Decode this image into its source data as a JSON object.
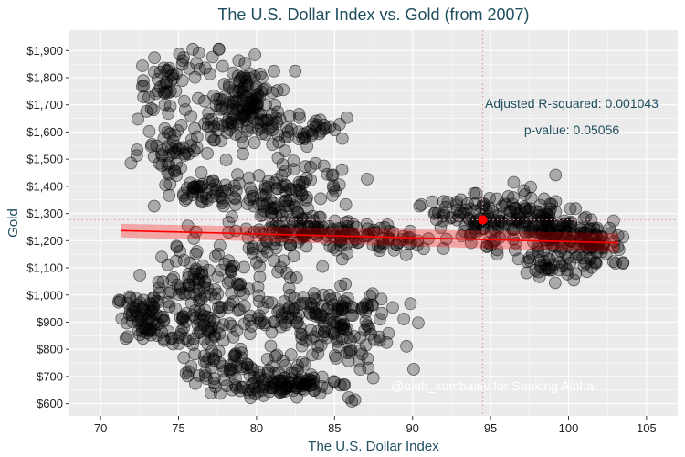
{
  "chart_data": {
    "type": "scatter",
    "title": "The U.S. Dollar Index vs. Gold (from 2007)",
    "xlabel": "The U.S. Dollar Index",
    "ylabel": "Gold",
    "xlim": [
      68,
      107
    ],
    "ylim": [
      555,
      1975
    ],
    "x_ticks": [
      70,
      75,
      80,
      85,
      90,
      95,
      100,
      105
    ],
    "y_ticks": [
      600,
      700,
      800,
      900,
      1000,
      1100,
      1200,
      1300,
      1400,
      1500,
      1600,
      1700,
      1800,
      1900
    ],
    "y_tick_labels": [
      "$600",
      "$700",
      "$800",
      "$900",
      "$1,000",
      "$1,100",
      "$1,200",
      "$1,300",
      "$1,400",
      "$1,500",
      "$1,600",
      "$1,700",
      "$1,800",
      "$1,900"
    ],
    "grid": true,
    "clusters": [
      {
        "cx": 73,
        "cy": 915,
        "sx": 1.0,
        "sy": 45,
        "n": 80
      },
      {
        "cx": 77,
        "cy": 880,
        "sx": 1.4,
        "sy": 80,
        "n": 90
      },
      {
        "cx": 79.5,
        "cy": 720,
        "sx": 2.0,
        "sy": 50,
        "n": 80
      },
      {
        "cx": 82,
        "cy": 665,
        "sx": 1.5,
        "sy": 15,
        "n": 70
      },
      {
        "cx": 84,
        "cy": 900,
        "sx": 1.5,
        "sy": 60,
        "n": 60
      },
      {
        "cx": 86,
        "cy": 820,
        "sx": 1.5,
        "sy": 80,
        "n": 50
      },
      {
        "cx": 86,
        "cy": 960,
        "sx": 1.5,
        "sy": 25,
        "n": 30
      },
      {
        "cx": 82,
        "cy": 930,
        "sx": 2.0,
        "sy": 30,
        "n": 40
      },
      {
        "cx": 79,
        "cy": 1100,
        "sx": 2.0,
        "sy": 70,
        "n": 60
      },
      {
        "cx": 76,
        "cy": 1050,
        "sx": 1.5,
        "sy": 60,
        "n": 40
      },
      {
        "cx": 81,
        "cy": 1300,
        "sx": 1.5,
        "sy": 50,
        "n": 80
      },
      {
        "cx": 83,
        "cy": 1230,
        "sx": 2.0,
        "sy": 25,
        "n": 60
      },
      {
        "cx": 86,
        "cy": 1215,
        "sx": 1.5,
        "sy": 25,
        "n": 40
      },
      {
        "cx": 89,
        "cy": 1200,
        "sx": 1.5,
        "sy": 20,
        "n": 30
      },
      {
        "cx": 77,
        "cy": 1380,
        "sx": 1.5,
        "sy": 30,
        "n": 50
      },
      {
        "cx": 74.5,
        "cy": 1540,
        "sx": 1.0,
        "sy": 50,
        "n": 50
      },
      {
        "cx": 74,
        "cy": 1780,
        "sx": 0.8,
        "sy": 60,
        "n": 40
      },
      {
        "cx": 79.5,
        "cy": 1720,
        "sx": 1.2,
        "sy": 60,
        "n": 110
      },
      {
        "cx": 83,
        "cy": 1600,
        "sx": 1.5,
        "sy": 25,
        "n": 50
      },
      {
        "cx": 83,
        "cy": 1430,
        "sx": 1.5,
        "sy": 40,
        "n": 40
      },
      {
        "cx": 78,
        "cy": 1620,
        "sx": 1.2,
        "sy": 50,
        "n": 40
      },
      {
        "cx": 76,
        "cy": 1850,
        "sx": 1.2,
        "sy": 30,
        "n": 15
      },
      {
        "cx": 94.5,
        "cy": 1270,
        "sx": 1.2,
        "sy": 50,
        "n": 50
      },
      {
        "cx": 97,
        "cy": 1260,
        "sx": 1.8,
        "sy": 55,
        "n": 110
      },
      {
        "cx": 100,
        "cy": 1210,
        "sx": 1.5,
        "sy": 45,
        "n": 110
      },
      {
        "cx": 102,
        "cy": 1170,
        "sx": 0.8,
        "sy": 35,
        "n": 30
      },
      {
        "cx": 99,
        "cy": 1100,
        "sx": 1.0,
        "sy": 25,
        "n": 30
      },
      {
        "cx": 92.5,
        "cy": 1320,
        "sx": 1.0,
        "sy": 25,
        "n": 20
      }
    ],
    "regression": {
      "x": [
        71.3,
        103.2
      ],
      "y": [
        1237,
        1192
      ],
      "band_start": 25,
      "band_end": 35
    },
    "current_point": {
      "x": 94.5,
      "y": 1277
    },
    "annotations": {
      "adjusted_r_squared": "Adjusted R-squared: 0.001043",
      "p_value": "p-value: 0.05056"
    },
    "colors": {
      "panel": "#ebebeb",
      "grid": "#ffffff",
      "points": "#000000",
      "regression": "#ff0000",
      "current_point": "#ff0000",
      "reference_lines": "#e59a9a"
    },
    "credit": "@oleh_kombaiev for Seeking Alpha"
  }
}
